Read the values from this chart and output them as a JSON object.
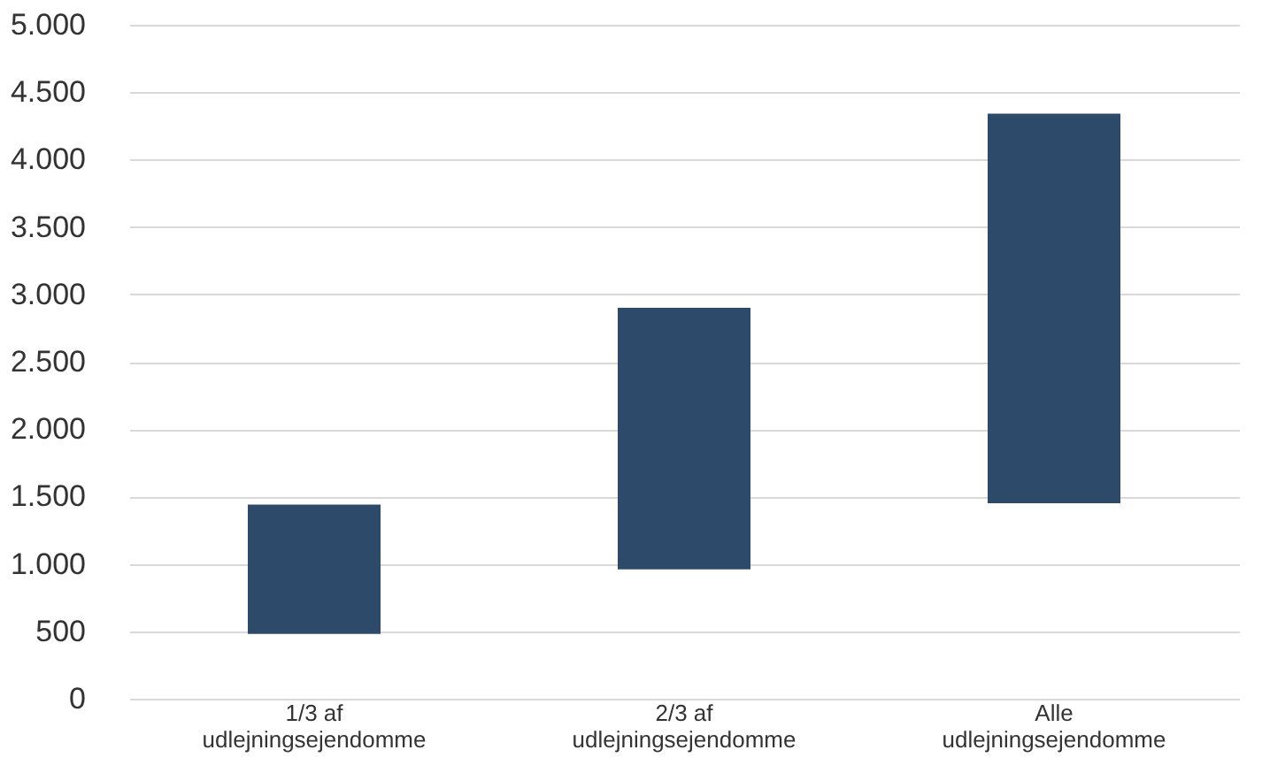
{
  "chart_data": {
    "type": "bar",
    "categories": [
      "1/3 af udlejningsejendomme",
      "2/3 af udlejningsejendomme",
      "Alle udlejningsejendomme"
    ],
    "values": [
      960,
      1940,
      2890
    ],
    "base": [
      480,
      960,
      1450
    ],
    "color": "#2e4a6b",
    "ylim": [
      0,
      5000
    ],
    "yticks": [
      0,
      500,
      {
        "value": 1000,
        "label": "1.000"
      },
      {
        "value": 1500,
        "label": "1.500"
      },
      {
        "value": 2000,
        "label": "2.000"
      },
      {
        "value": 2500,
        "label": "2.500"
      },
      {
        "value": 3000,
        "label": "3.000"
      },
      {
        "value": 3500,
        "label": "3.500"
      },
      {
        "value": 4000,
        "label": "4.000"
      },
      {
        "value": 4500,
        "label": "4.500"
      },
      {
        "value": 5000,
        "label": "5.000"
      }
    ],
    "grid": "y"
  }
}
